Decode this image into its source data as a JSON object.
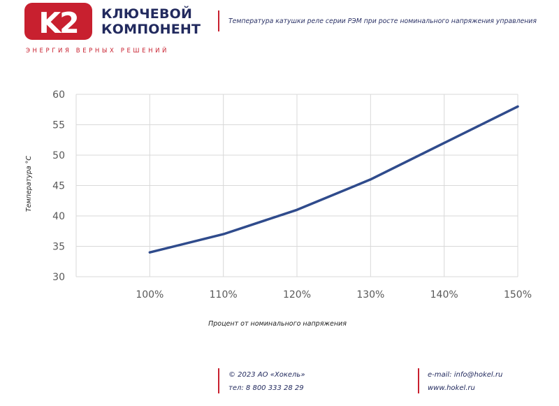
{
  "header": {
    "logo_mark": "K2",
    "brand_line1": "КЛЮЧЕВОЙ",
    "brand_line2": "КОМПОНЕНТ",
    "tagline": "ЭНЕРГИЯ ВЕРНЫХ РЕШЕНИЙ",
    "title": "Температура катушки реле серии РЭМ при росте номинального напряжения управления"
  },
  "colors": {
    "brand_red": "#c8202f",
    "brand_navy": "#222a5e",
    "series_line": "#2f4b8c",
    "grid": "#d9d9d9"
  },
  "chart_data": {
    "type": "line",
    "categories": [
      "100%",
      "110%",
      "120%",
      "130%",
      "140%",
      "150%"
    ],
    "series": [
      {
        "values": [
          34,
          37,
          41,
          46,
          52,
          58
        ]
      }
    ],
    "xlabel": "Процент от номинального напряжения",
    "ylabel": "Температура °С",
    "ylim": [
      30,
      60
    ],
    "yticks": [
      30,
      35,
      40,
      45,
      50,
      55,
      60
    ],
    "grid": true,
    "legend": "none"
  },
  "footer": {
    "copyright": "© 2023 АО «Хокель»",
    "phone": "тел: 8 800 333 28 29",
    "email": "e-mail: info@hokel.ru",
    "website": "www.hokel.ru"
  }
}
